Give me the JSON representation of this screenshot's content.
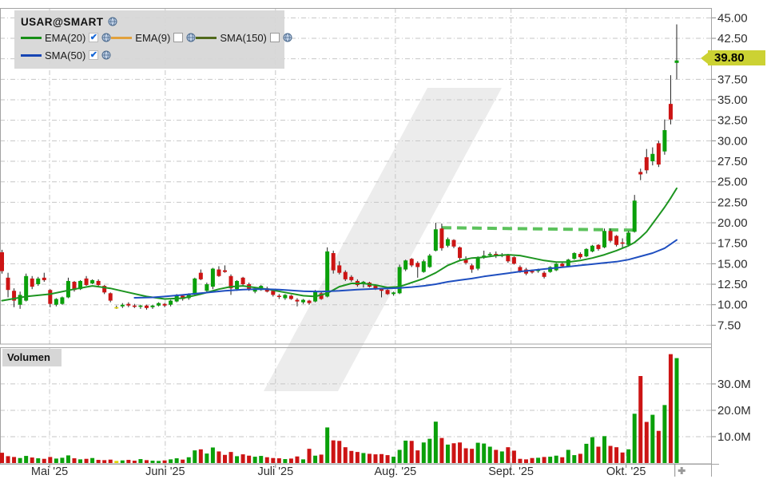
{
  "legend": {
    "symbol": "USAR@SMART",
    "indicators": [
      {
        "label": "EMA(20)",
        "color": "#168f16",
        "checked": true,
        "row": 1
      },
      {
        "label": "EMA(9)",
        "color": "#e2a13c",
        "checked": false,
        "row": 1
      },
      {
        "label": "SMA(150)",
        "color": "#50691c",
        "checked": false,
        "row": 1
      },
      {
        "label": "SMA(50)",
        "color": "#1645b4",
        "checked": true,
        "row": 2
      }
    ]
  },
  "volume_panel": {
    "label": "Volumen"
  },
  "price_tag": {
    "value": "39.80",
    "bg": "#ccd233"
  },
  "x_axis": {
    "months": [
      {
        "label": "Mai '25",
        "grid_index": 7.9
      },
      {
        "label": "Juni '25",
        "grid_index": 27.1
      },
      {
        "label": "Juli '25",
        "grid_index": 45.4
      },
      {
        "label": "Aug. '25",
        "grid_index": 65.3
      },
      {
        "label": "Sept. '25",
        "grid_index": 84.5
      },
      {
        "label": "Okt. '25",
        "grid_index": 103.6
      }
    ]
  },
  "price_axis": {
    "gridline_prices": [
      45,
      42.5,
      40,
      37.5,
      35,
      32.5,
      30,
      27.5,
      25,
      22.5,
      20,
      17.5,
      15,
      12.5,
      10,
      7.5
    ],
    "hidden_label_price": 40,
    "decimals": 2
  },
  "volume_axis": {
    "gridline_values": [
      30,
      20,
      10
    ],
    "suffix": "M",
    "decimals": 1
  },
  "colors": {
    "up": "#0aa00a",
    "down": "#cc1414",
    "doji": "#ddd300",
    "wick": "#222222",
    "ema20_line": "#1d9520",
    "sma50_line": "#1f4fc0",
    "resistance": "#5cc25c",
    "grid": "#c6c6c6",
    "panel_border": "#a3a3a3",
    "axis_text": "#2e2e2e",
    "watermark": "#ececec",
    "tick": "#888888",
    "plus_marker": "#9a9a9a"
  },
  "chart_data": {
    "type": "candlestick",
    "title": "USAR@SMART",
    "price_ylim": [
      5.2,
      46.2
    ],
    "volume_ylim": [
      0,
      43
    ],
    "last_price": 39.8,
    "yellow_candle_index": 19,
    "candles": [
      [
        16.4,
        16.7,
        13.8,
        14.1,
        3.9
      ],
      [
        13.3,
        13.9,
        10.9,
        11.8,
        2.6
      ],
      [
        11.7,
        12.0,
        9.7,
        10.5,
        2.3
      ],
      [
        10.0,
        11.6,
        9.5,
        11.2,
        1.9
      ],
      [
        10.5,
        13.8,
        10.4,
        13.5,
        2.7
      ],
      [
        13.2,
        13.5,
        11.9,
        12.2,
        2.1
      ],
      [
        12.5,
        13.4,
        12.3,
        13.2,
        1.8
      ],
      [
        13.3,
        13.9,
        12.8,
        13.0,
        1.6
      ],
      [
        11.8,
        11.9,
        9.7,
        10.1,
        2.3
      ],
      [
        10.0,
        10.8,
        9.8,
        10.7,
        1.7
      ],
      [
        10.1,
        11.0,
        10.0,
        10.9,
        2.0
      ],
      [
        10.9,
        13.3,
        10.8,
        12.9,
        2.9
      ],
      [
        12.8,
        12.9,
        11.6,
        11.8,
        1.8
      ],
      [
        11.9,
        13.0,
        11.8,
        12.9,
        1.4
      ],
      [
        13.2,
        13.5,
        12.3,
        12.4,
        1.6
      ],
      [
        12.6,
        13.1,
        12.5,
        13.0,
        1.9
      ],
      [
        12.9,
        13.1,
        12.2,
        12.4,
        1.2
      ],
      [
        12.3,
        12.4,
        11.3,
        11.5,
        1.1
      ],
      [
        11.4,
        11.5,
        10.3,
        10.5,
        1.3
      ],
      [
        9.7,
        9.9,
        9.5,
        9.7,
        0.8
      ],
      [
        9.8,
        10.2,
        9.6,
        10.0,
        1.0
      ],
      [
        10.1,
        10.3,
        9.7,
        9.9,
        1.2
      ],
      [
        9.9,
        10.1,
        9.6,
        9.8,
        0.9
      ],
      [
        9.8,
        10.0,
        9.5,
        9.9,
        1.5
      ],
      [
        9.9,
        10.0,
        9.4,
        9.6,
        1.1
      ],
      [
        9.7,
        10.0,
        9.5,
        9.9,
        0.9
      ],
      [
        9.9,
        10.3,
        9.8,
        10.2,
        0.8
      ],
      [
        10.1,
        10.2,
        9.7,
        9.9,
        1.0
      ],
      [
        10.0,
        10.6,
        9.8,
        10.5,
        1.4
      ],
      [
        10.4,
        11.3,
        10.3,
        11.2,
        1.8
      ],
      [
        11.1,
        11.2,
        10.5,
        10.7,
        1.3
      ],
      [
        10.8,
        11.4,
        10.6,
        11.3,
        2.2
      ],
      [
        11.3,
        13.3,
        11.2,
        13.2,
        4.8
      ],
      [
        13.9,
        14.3,
        13.0,
        13.1,
        5.2
      ],
      [
        11.7,
        12.7,
        11.5,
        12.5,
        3.6
      ],
      [
        12.2,
        14.5,
        11.9,
        14.4,
        5.9
      ],
      [
        14.3,
        14.7,
        13.4,
        13.5,
        4.4
      ],
      [
        14.2,
        14.8,
        13.9,
        14.0,
        3.1
      ],
      [
        13.5,
        13.7,
        11.2,
        12.0,
        4.2
      ],
      [
        11.9,
        13.0,
        11.7,
        12.9,
        2.6
      ],
      [
        13.3,
        13.4,
        12.3,
        12.5,
        3.3
      ],
      [
        12.5,
        12.7,
        11.7,
        11.8,
        2.8
      ],
      [
        11.6,
        12.1,
        11.4,
        12.0,
        2.4
      ],
      [
        11.8,
        12.4,
        11.7,
        12.3,
        2.7
      ],
      [
        12.0,
        12.2,
        11.5,
        11.6,
        2.2
      ],
      [
        11.7,
        11.9,
        11.0,
        11.2,
        1.9
      ],
      [
        11.1,
        11.3,
        10.7,
        11.0,
        1.8
      ],
      [
        10.8,
        11.3,
        10.6,
        11.2,
        1.5
      ],
      [
        11.1,
        11.2,
        10.6,
        10.7,
        1.7
      ],
      [
        10.6,
        10.8,
        9.8,
        10.4,
        2.5
      ],
      [
        10.3,
        10.7,
        10.1,
        10.6,
        1.4
      ],
      [
        10.5,
        10.6,
        10.0,
        10.2,
        5.4
      ],
      [
        10.4,
        11.8,
        10.3,
        11.7,
        2.8
      ],
      [
        11.4,
        11.6,
        10.6,
        10.7,
        3.2
      ],
      [
        11.0,
        17.0,
        10.9,
        16.5,
        13.5
      ],
      [
        16.3,
        16.6,
        13.8,
        14.2,
        8.6
      ],
      [
        14.8,
        15.3,
        13.7,
        13.9,
        8.4
      ],
      [
        14.0,
        14.2,
        12.9,
        13.1,
        6.0
      ],
      [
        13.4,
        13.6,
        12.8,
        13.0,
        4.6
      ],
      [
        12.9,
        13.1,
        12.2,
        12.4,
        4.2
      ],
      [
        12.5,
        12.9,
        12.1,
        12.8,
        3.8
      ],
      [
        12.7,
        12.8,
        12.1,
        12.2,
        3.5
      ],
      [
        12.3,
        12.5,
        11.8,
        12.0,
        3.3
      ],
      [
        11.9,
        12.0,
        10.9,
        11.7,
        3.4
      ],
      [
        11.8,
        11.9,
        11.2,
        11.3,
        3.0
      ],
      [
        11.3,
        11.6,
        11.1,
        11.5,
        2.4
      ],
      [
        11.4,
        14.9,
        11.3,
        14.6,
        5.0
      ],
      [
        14.3,
        15.5,
        14.1,
        15.4,
        8.5
      ],
      [
        15.6,
        15.7,
        14.6,
        14.8,
        8.4
      ],
      [
        15.1,
        15.3,
        13.3,
        14.6,
        4.8
      ],
      [
        14.0,
        15.5,
        13.9,
        15.3,
        7.8
      ],
      [
        14.6,
        16.2,
        14.5,
        16.0,
        9.2
      ],
      [
        16.6,
        20.0,
        16.5,
        19.2,
        15.7
      ],
      [
        19.3,
        19.9,
        16.6,
        16.9,
        9.5
      ],
      [
        17.2,
        18.2,
        17.0,
        18.0,
        7.0
      ],
      [
        17.9,
        18.0,
        16.9,
        17.1,
        7.5
      ],
      [
        17.0,
        17.1,
        15.4,
        15.7,
        7.8
      ],
      [
        15.5,
        15.9,
        14.9,
        15.1,
        5.6
      ],
      [
        14.8,
        15.0,
        13.9,
        14.3,
        5.4
      ],
      [
        14.4,
        15.9,
        14.2,
        15.8,
        7.7
      ],
      [
        15.8,
        16.6,
        15.6,
        16.0,
        7.4
      ],
      [
        16.1,
        16.4,
        15.8,
        16.2,
        6.2
      ],
      [
        16.2,
        16.5,
        15.7,
        16.0,
        5.0
      ],
      [
        16.0,
        16.3,
        15.8,
        16.1,
        4.4
      ],
      [
        16.1,
        16.2,
        15.1,
        15.3,
        6.0
      ],
      [
        15.8,
        15.9,
        14.9,
        15.0,
        4.7
      ],
      [
        14.6,
        14.8,
        13.9,
        14.0,
        1.6
      ],
      [
        14.3,
        14.5,
        13.6,
        13.8,
        1.4
      ],
      [
        14.1,
        14.3,
        13.8,
        14.0,
        1.9
      ],
      [
        14.1,
        14.4,
        13.9,
        14.3,
        2.0
      ],
      [
        13.9,
        14.1,
        13.2,
        13.4,
        2.3
      ],
      [
        14.0,
        14.7,
        13.9,
        14.6,
        2.4
      ],
      [
        14.2,
        15.1,
        14.1,
        15.0,
        2.8
      ],
      [
        15.0,
        15.2,
        14.5,
        14.7,
        2.2
      ],
      [
        14.7,
        15.6,
        14.6,
        15.5,
        5.0
      ],
      [
        15.6,
        16.4,
        15.5,
        16.3,
        3.0
      ],
      [
        16.2,
        16.4,
        15.6,
        15.8,
        3.5
      ],
      [
        15.9,
        16.9,
        15.8,
        16.8,
        7.3
      ],
      [
        16.5,
        17.3,
        16.4,
        17.2,
        9.8
      ],
      [
        17.3,
        17.4,
        16.6,
        16.8,
        6.2
      ],
      [
        17.0,
        19.3,
        16.9,
        19.0,
        10.2
      ],
      [
        19.0,
        19.3,
        17.6,
        17.8,
        6.5
      ],
      [
        18.4,
        18.5,
        17.1,
        17.3,
        6.0
      ],
      [
        17.6,
        18.1,
        16.9,
        17.5,
        4.0
      ],
      [
        17.3,
        19.0,
        17.1,
        18.8,
        5.2
      ],
      [
        18.9,
        23.4,
        18.8,
        22.7,
        18.7
      ],
      [
        26.2,
        26.6,
        25.2,
        25.9,
        33.0
      ],
      [
        28.0,
        29.0,
        26.0,
        26.4,
        15.6
      ],
      [
        27.5,
        29.2,
        27.0,
        28.4,
        18.3
      ],
      [
        29.7,
        30.0,
        26.8,
        27.1,
        12.2
      ],
      [
        28.7,
        32.6,
        28.3,
        31.3,
        22.0
      ],
      [
        34.5,
        38.0,
        32.0,
        32.6,
        41.3
      ],
      [
        39.5,
        44.2,
        37.5,
        39.8,
        39.8
      ]
    ],
    "overlays": {
      "ema20": [
        [
          0,
          10.5
        ],
        [
          4,
          11.0
        ],
        [
          8,
          11.3
        ],
        [
          12,
          11.9
        ],
        [
          15,
          12.3
        ],
        [
          18,
          12.0
        ],
        [
          21,
          11.5
        ],
        [
          24,
          11.0
        ],
        [
          27,
          10.7
        ],
        [
          30,
          10.8
        ],
        [
          33,
          11.3
        ],
        [
          36,
          11.9
        ],
        [
          38,
          12.2
        ],
        [
          40,
          12.3
        ],
        [
          42,
          12.1
        ],
        [
          44,
          11.9
        ],
        [
          47,
          11.5
        ],
        [
          50,
          11.1
        ],
        [
          52,
          11.0
        ],
        [
          54,
          11.4
        ],
        [
          56,
          12.2
        ],
        [
          58,
          12.6
        ],
        [
          60,
          12.6
        ],
        [
          62,
          12.4
        ],
        [
          64,
          12.1
        ],
        [
          66,
          12.2
        ],
        [
          68,
          12.7
        ],
        [
          70,
          13.2
        ],
        [
          72,
          13.9
        ],
        [
          74,
          14.8
        ],
        [
          76,
          15.4
        ],
        [
          78,
          15.7
        ],
        [
          80,
          15.8
        ],
        [
          82,
          16.0
        ],
        [
          84,
          16.1
        ],
        [
          86,
          16.0
        ],
        [
          88,
          15.7
        ],
        [
          90,
          15.4
        ],
        [
          92,
          15.2
        ],
        [
          94,
          15.2
        ],
        [
          96,
          15.4
        ],
        [
          98,
          15.7
        ],
        [
          100,
          16.1
        ],
        [
          102,
          16.6
        ],
        [
          104,
          17.2
        ],
        [
          105,
          17.6
        ],
        [
          106,
          18.2
        ],
        [
          107,
          18.9
        ],
        [
          108,
          19.9
        ],
        [
          109,
          20.9
        ],
        [
          110,
          21.9
        ],
        [
          111,
          23.0
        ],
        [
          112,
          24.2
        ]
      ],
      "sma50": [
        [
          22,
          10.85
        ],
        [
          25,
          10.9
        ],
        [
          27,
          11.0
        ],
        [
          30,
          11.2
        ],
        [
          32,
          11.35
        ],
        [
          35,
          11.55
        ],
        [
          37,
          11.7
        ],
        [
          40,
          11.85
        ],
        [
          42,
          11.9
        ],
        [
          44,
          11.9
        ],
        [
          46,
          11.85
        ],
        [
          48,
          11.75
        ],
        [
          50,
          11.65
        ],
        [
          53,
          11.6
        ],
        [
          56,
          11.7
        ],
        [
          59,
          11.85
        ],
        [
          62,
          11.95
        ],
        [
          64,
          12.0
        ],
        [
          66,
          12.05
        ],
        [
          68,
          12.15
        ],
        [
          70,
          12.3
        ],
        [
          72,
          12.5
        ],
        [
          74,
          12.8
        ],
        [
          76,
          13.0
        ],
        [
          78,
          13.2
        ],
        [
          80,
          13.45
        ],
        [
          82,
          13.65
        ],
        [
          84,
          13.85
        ],
        [
          86,
          14.05
        ],
        [
          88,
          14.2
        ],
        [
          90,
          14.35
        ],
        [
          92,
          14.5
        ],
        [
          94,
          14.65
        ],
        [
          96,
          14.8
        ],
        [
          98,
          14.95
        ],
        [
          100,
          15.1
        ],
        [
          102,
          15.25
        ],
        [
          104,
          15.5
        ],
        [
          106,
          15.9
        ],
        [
          108,
          16.3
        ],
        [
          110,
          16.9
        ],
        [
          112,
          17.9
        ]
      ],
      "resistance": {
        "from_index": 73,
        "from_price": 19.4,
        "to_index": 105,
        "to_price": 19.1
      }
    }
  },
  "markers": {
    "latest_tick_index": 111.7,
    "plus_icon": "+"
  }
}
